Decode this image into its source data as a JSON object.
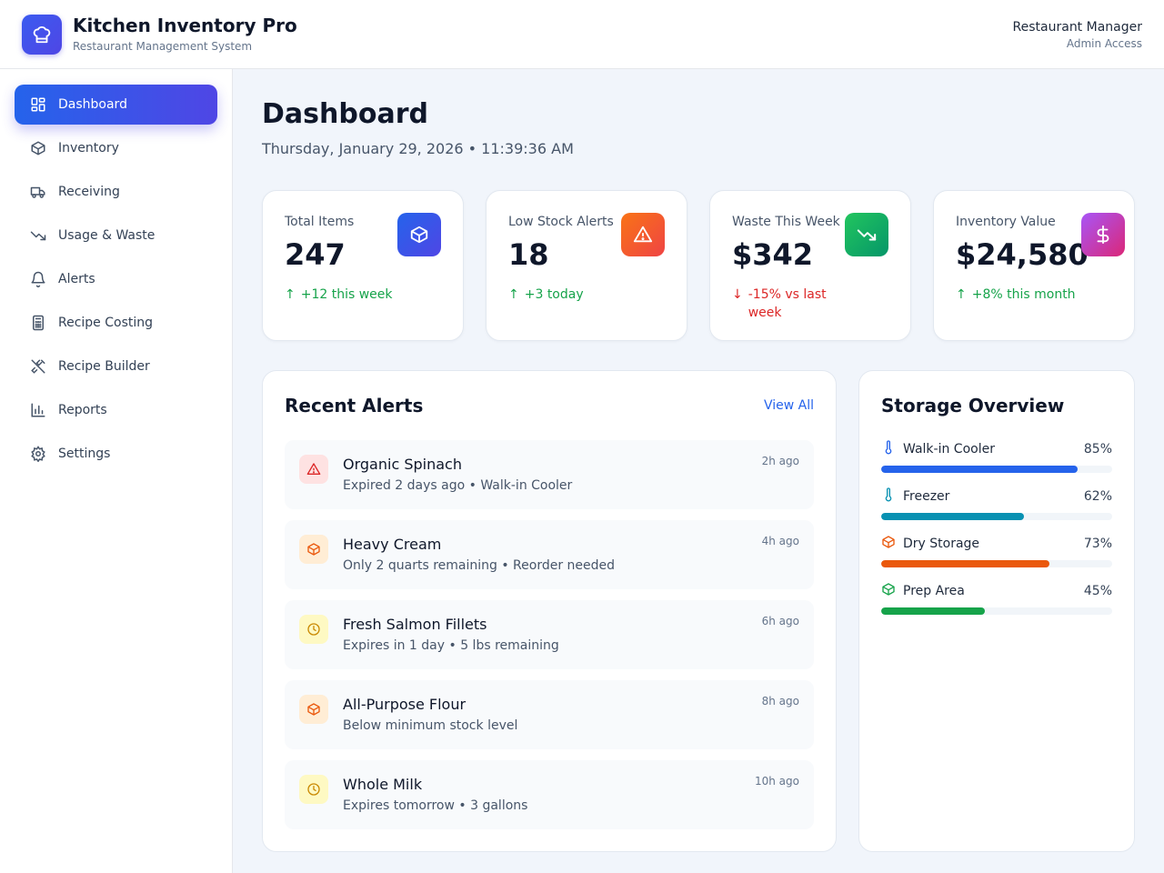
{
  "app": {
    "title": "Kitchen Inventory Pro",
    "subtitle": "Restaurant Management System",
    "user_role": "Restaurant Manager",
    "user_access": "Admin Access"
  },
  "sidebar": {
    "items": [
      {
        "label": "Dashboard",
        "icon": "dashboard-icon",
        "active": true
      },
      {
        "label": "Inventory",
        "icon": "box-icon"
      },
      {
        "label": "Receiving",
        "icon": "truck-icon"
      },
      {
        "label": "Usage & Waste",
        "icon": "trending-down-icon"
      },
      {
        "label": "Alerts",
        "icon": "bell-icon"
      },
      {
        "label": "Recipe Costing",
        "icon": "calculator-icon"
      },
      {
        "label": "Recipe Builder",
        "icon": "utensils-icon"
      },
      {
        "label": "Reports",
        "icon": "bar-chart-icon"
      },
      {
        "label": "Settings",
        "icon": "gear-icon"
      }
    ]
  },
  "main": {
    "title": "Dashboard",
    "date": "Thursday, January 29, 2026 • 11:39:36 AM"
  },
  "stats": [
    {
      "label": "Total Items",
      "value": "247",
      "trend": "+12 this week",
      "direction": "up",
      "icon": "box-icon",
      "color": "#4f46e5"
    },
    {
      "label": "Low Stock Alerts",
      "value": "18",
      "trend": "+3 today",
      "direction": "up",
      "icon": "warning-icon",
      "color": "#f97316"
    },
    {
      "label": "Waste This Week",
      "value": "$342",
      "trend": "-15% vs last week",
      "direction": "down",
      "icon": "trending-down-icon",
      "color": "#16a34a"
    },
    {
      "label": "Inventory Value",
      "value": "$24,580",
      "trend": "+8% this month",
      "direction": "up",
      "icon": "dollar-icon",
      "color": "#c026d3"
    }
  ],
  "alerts": {
    "title": "Recent Alerts",
    "view_all": "View All",
    "items": [
      {
        "name": "Organic Spinach",
        "detail": "Expired 2 days ago • Walk-in Cooler",
        "time": "2h ago",
        "icon": "warning-icon"
      },
      {
        "name": "Heavy Cream",
        "detail": "Only 2 quarts remaining • Reorder needed",
        "time": "4h ago",
        "icon": "box-icon"
      },
      {
        "name": "Fresh Salmon Fillets",
        "detail": "Expires in 1 day • 5 lbs remaining",
        "time": "6h ago",
        "icon": "clock-icon"
      },
      {
        "name": "All-Purpose Flour",
        "detail": "Below minimum stock level",
        "time": "8h ago",
        "icon": "box-icon"
      },
      {
        "name": "Whole Milk",
        "detail": "Expires tomorrow • 3 gallons",
        "time": "10h ago",
        "icon": "clock-icon"
      }
    ]
  },
  "storage": {
    "title": "Storage Overview",
    "areas": [
      {
        "name": "Walk-in Cooler",
        "percent": 85,
        "label": "85%",
        "icon": "thermometer-icon",
        "color": "#2563eb"
      },
      {
        "name": "Freezer",
        "percent": 62,
        "label": "62%",
        "icon": "thermometer-icon",
        "color": "#0891b2"
      },
      {
        "name": "Dry Storage",
        "percent": 73,
        "label": "73%",
        "icon": "box-icon",
        "color": "#ea580c"
      },
      {
        "name": "Prep Area",
        "percent": 45,
        "label": "45%",
        "icon": "box-icon",
        "color": "#16a34a"
      }
    ]
  }
}
